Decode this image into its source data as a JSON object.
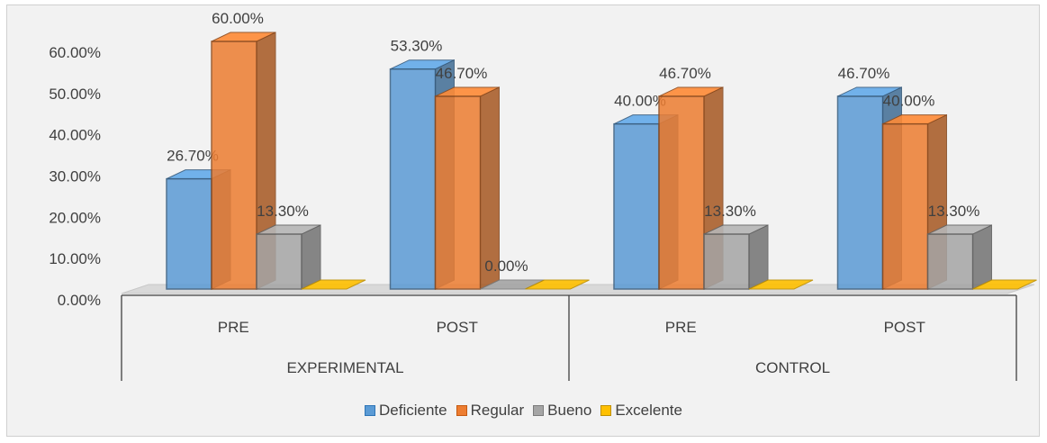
{
  "chart_data": {
    "type": "bar",
    "title": "",
    "xlabel": "",
    "ylabel": "",
    "ylim": [
      0,
      0.6
    ],
    "yticks": [
      "0.00%",
      "10.00%",
      "20.00%",
      "30.00%",
      "40.00%",
      "50.00%",
      "60.00%"
    ],
    "categories": [
      "PRE",
      "POST",
      "PRE",
      "POST"
    ],
    "groups": [
      {
        "label": "EXPERIMENTAL",
        "categories": [
          "PRE",
          "POST"
        ]
      },
      {
        "label": "CONTROL",
        "categories": [
          "PRE",
          "POST"
        ]
      }
    ],
    "series": [
      {
        "name": "Deficiente",
        "values": [
          0.267,
          0.533,
          0.4,
          0.467
        ],
        "labels": [
          "26.70%",
          "53.30%",
          "40.00%",
          "46.70%"
        ],
        "color": "#5b9bd5"
      },
      {
        "name": "Regular",
        "values": [
          0.6,
          0.467,
          0.467,
          0.4
        ],
        "labels": [
          "60.00%",
          "46.70%",
          "46.70%",
          "40.00%"
        ],
        "color": "#ed7d31"
      },
      {
        "name": "Bueno",
        "values": [
          0.133,
          0.0,
          0.133,
          0.133
        ],
        "labels": [
          "13.30%",
          "0.00%",
          "13.30%",
          "13.30%"
        ],
        "color": "#a5a5a5"
      },
      {
        "name": "Excelente",
        "values": [
          0,
          0,
          0,
          0
        ],
        "labels": [
          "",
          "",
          "",
          ""
        ],
        "color": "#ffc000"
      }
    ],
    "legend_position": "bottom",
    "grid": false
  }
}
